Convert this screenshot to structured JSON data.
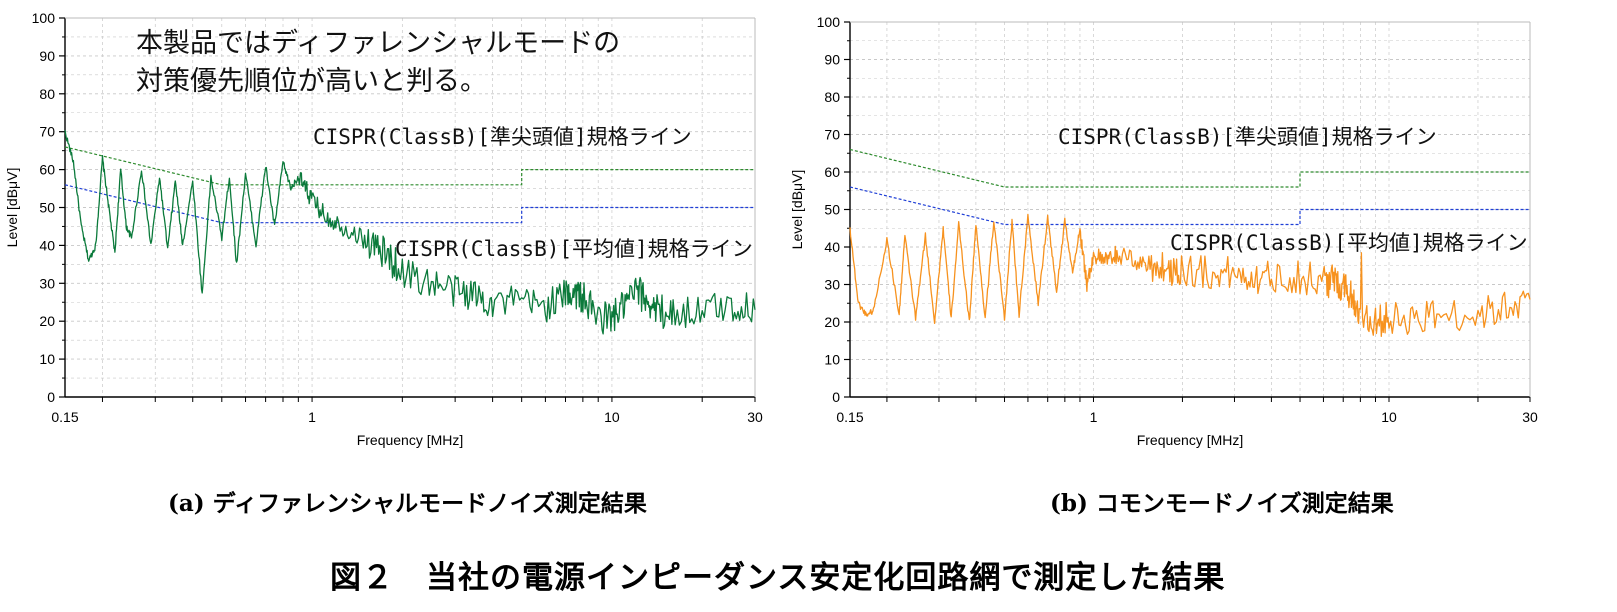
{
  "figure_title": "図２　当社の電源インピーダンス安定化回路網で測定した結果",
  "colors": {
    "quasi_peak_line": "#2e8b2e",
    "average_line": "#1f3fd6",
    "diff_mode_trace": "#0b7a3b",
    "common_mode_trace": "#f7921e",
    "grid": "#c8c8c8"
  },
  "chart_data": [
    {
      "type": "line",
      "caption": "(a) ディファレンシャルモードノイズ測定結果",
      "xlabel": "Frequency [MHz]",
      "ylabel": "Level [dBμV]",
      "x_scale": "log",
      "xlim": [
        0.15,
        30
      ],
      "ylim": [
        0,
        100
      ],
      "x_ticks": [
        0.15,
        1,
        10,
        30
      ],
      "x_tick_labels": [
        "0.15",
        "1",
        "10",
        "30"
      ],
      "y_ticks": [
        0,
        10,
        20,
        30,
        40,
        50,
        60,
        70,
        80,
        90,
        100
      ],
      "y_tick_labels": [
        "0",
        "10",
        "20",
        "30",
        "40",
        "50",
        "60",
        "70",
        "80",
        "90",
        "100"
      ],
      "grid": true,
      "annotations": [
        "本製品ではディファレンシャルモードの",
        "対策優先順位が高いと判る。",
        "CISPR(ClassB)[準尖頭値]規格ライン",
        "CISPR(ClassB)[平均値]規格ライン"
      ],
      "series": [
        {
          "key": "qp_limit",
          "style": "dashed",
          "color": "#2e8b2e",
          "x": [
            0.15,
            0.5,
            5,
            5,
            30
          ],
          "y": [
            66,
            56,
            56,
            60,
            60
          ]
        },
        {
          "key": "avg_limit",
          "style": "dashed",
          "color": "#1f3fd6",
          "x": [
            0.15,
            0.5,
            5,
            5,
            30
          ],
          "y": [
            56,
            46,
            46,
            50,
            50
          ]
        },
        {
          "key": "measured",
          "style": "solid",
          "color": "#0b7a3b",
          "x": [
            0.15,
            0.16,
            0.17,
            0.18,
            0.19,
            0.2,
            0.21,
            0.22,
            0.23,
            0.24,
            0.25,
            0.27,
            0.29,
            0.31,
            0.33,
            0.35,
            0.37,
            0.4,
            0.43,
            0.46,
            0.5,
            0.53,
            0.56,
            0.6,
            0.65,
            0.7,
            0.75,
            0.8,
            0.85,
            0.9,
            0.95,
            1.0,
            1.1,
            1.2,
            1.4,
            1.6,
            1.8,
            2.0,
            2.5,
            3.0,
            3.5,
            4.0,
            5.0,
            6.0,
            7.0,
            7.5,
            8.0,
            9.0,
            10.0,
            11.0,
            12.0,
            13.0,
            14.0,
            16.0,
            20.0,
            25.0,
            30.0
          ],
          "y": [
            70,
            62,
            45,
            36,
            40,
            63,
            50,
            38,
            60,
            45,
            42,
            60,
            40,
            58,
            39,
            57,
            40,
            57,
            27,
            58,
            42,
            58,
            35,
            59,
            40,
            61,
            45,
            62,
            55,
            58,
            55,
            52,
            48,
            46,
            43,
            40,
            37,
            33,
            30,
            28,
            27,
            25,
            25,
            24,
            27,
            28,
            26,
            21,
            21,
            24,
            28,
            26,
            23,
            22,
            23,
            24,
            23
          ]
        }
      ]
    },
    {
      "type": "line",
      "caption": "(b) コモンモードノイズ測定結果",
      "xlabel": "Frequency [MHz]",
      "ylabel": "Level [dBμV]",
      "x_scale": "log",
      "xlim": [
        0.15,
        30
      ],
      "ylim": [
        0,
        100
      ],
      "x_ticks": [
        0.15,
        1,
        10,
        30
      ],
      "x_tick_labels": [
        "0.15",
        "1",
        "10",
        "30"
      ],
      "y_ticks": [
        0,
        10,
        20,
        30,
        40,
        50,
        60,
        70,
        80,
        90,
        100
      ],
      "y_tick_labels": [
        "0",
        "10",
        "20",
        "30",
        "40",
        "50",
        "60",
        "70",
        "80",
        "90",
        "100"
      ],
      "grid": true,
      "annotations": [
        "CISPR(ClassB)[準尖頭値]規格ライン",
        "CISPR(ClassB)[平均値]規格ライン"
      ],
      "series": [
        {
          "key": "qp_limit",
          "style": "dashed",
          "color": "#2e8b2e",
          "x": [
            0.15,
            0.5,
            5,
            5,
            30
          ],
          "y": [
            66,
            56,
            56,
            60,
            60
          ]
        },
        {
          "key": "avg_limit",
          "style": "dashed",
          "color": "#1f3fd6",
          "x": [
            0.15,
            0.5,
            5,
            5,
            30
          ],
          "y": [
            56,
            46,
            46,
            50,
            50
          ]
        },
        {
          "key": "measured",
          "style": "solid",
          "color": "#f7921e",
          "x": [
            0.15,
            0.16,
            0.17,
            0.18,
            0.2,
            0.22,
            0.23,
            0.25,
            0.27,
            0.29,
            0.31,
            0.33,
            0.35,
            0.38,
            0.4,
            0.43,
            0.46,
            0.5,
            0.53,
            0.56,
            0.6,
            0.65,
            0.7,
            0.75,
            0.8,
            0.85,
            0.9,
            0.95,
            1.0,
            1.1,
            1.2,
            1.4,
            1.6,
            1.8,
            2.0,
            2.5,
            3.0,
            3.5,
            4.0,
            5.0,
            6.0,
            6.5,
            7.0,
            7.5,
            8.0,
            9.0,
            10.0,
            12.0,
            15.0,
            20.0,
            25.0,
            30.0
          ],
          "y": [
            45,
            25,
            22,
            23,
            42,
            22,
            43,
            21,
            43,
            20,
            45,
            21,
            46,
            20,
            46,
            21,
            47,
            21,
            47,
            22,
            48,
            25,
            48,
            28,
            47,
            33,
            45,
            30,
            38,
            36,
            38,
            36,
            35,
            34,
            34,
            33,
            33,
            32,
            32,
            32,
            31,
            31,
            30,
            27,
            22,
            20,
            21,
            21,
            22,
            22,
            24,
            26
          ]
        }
      ]
    }
  ]
}
